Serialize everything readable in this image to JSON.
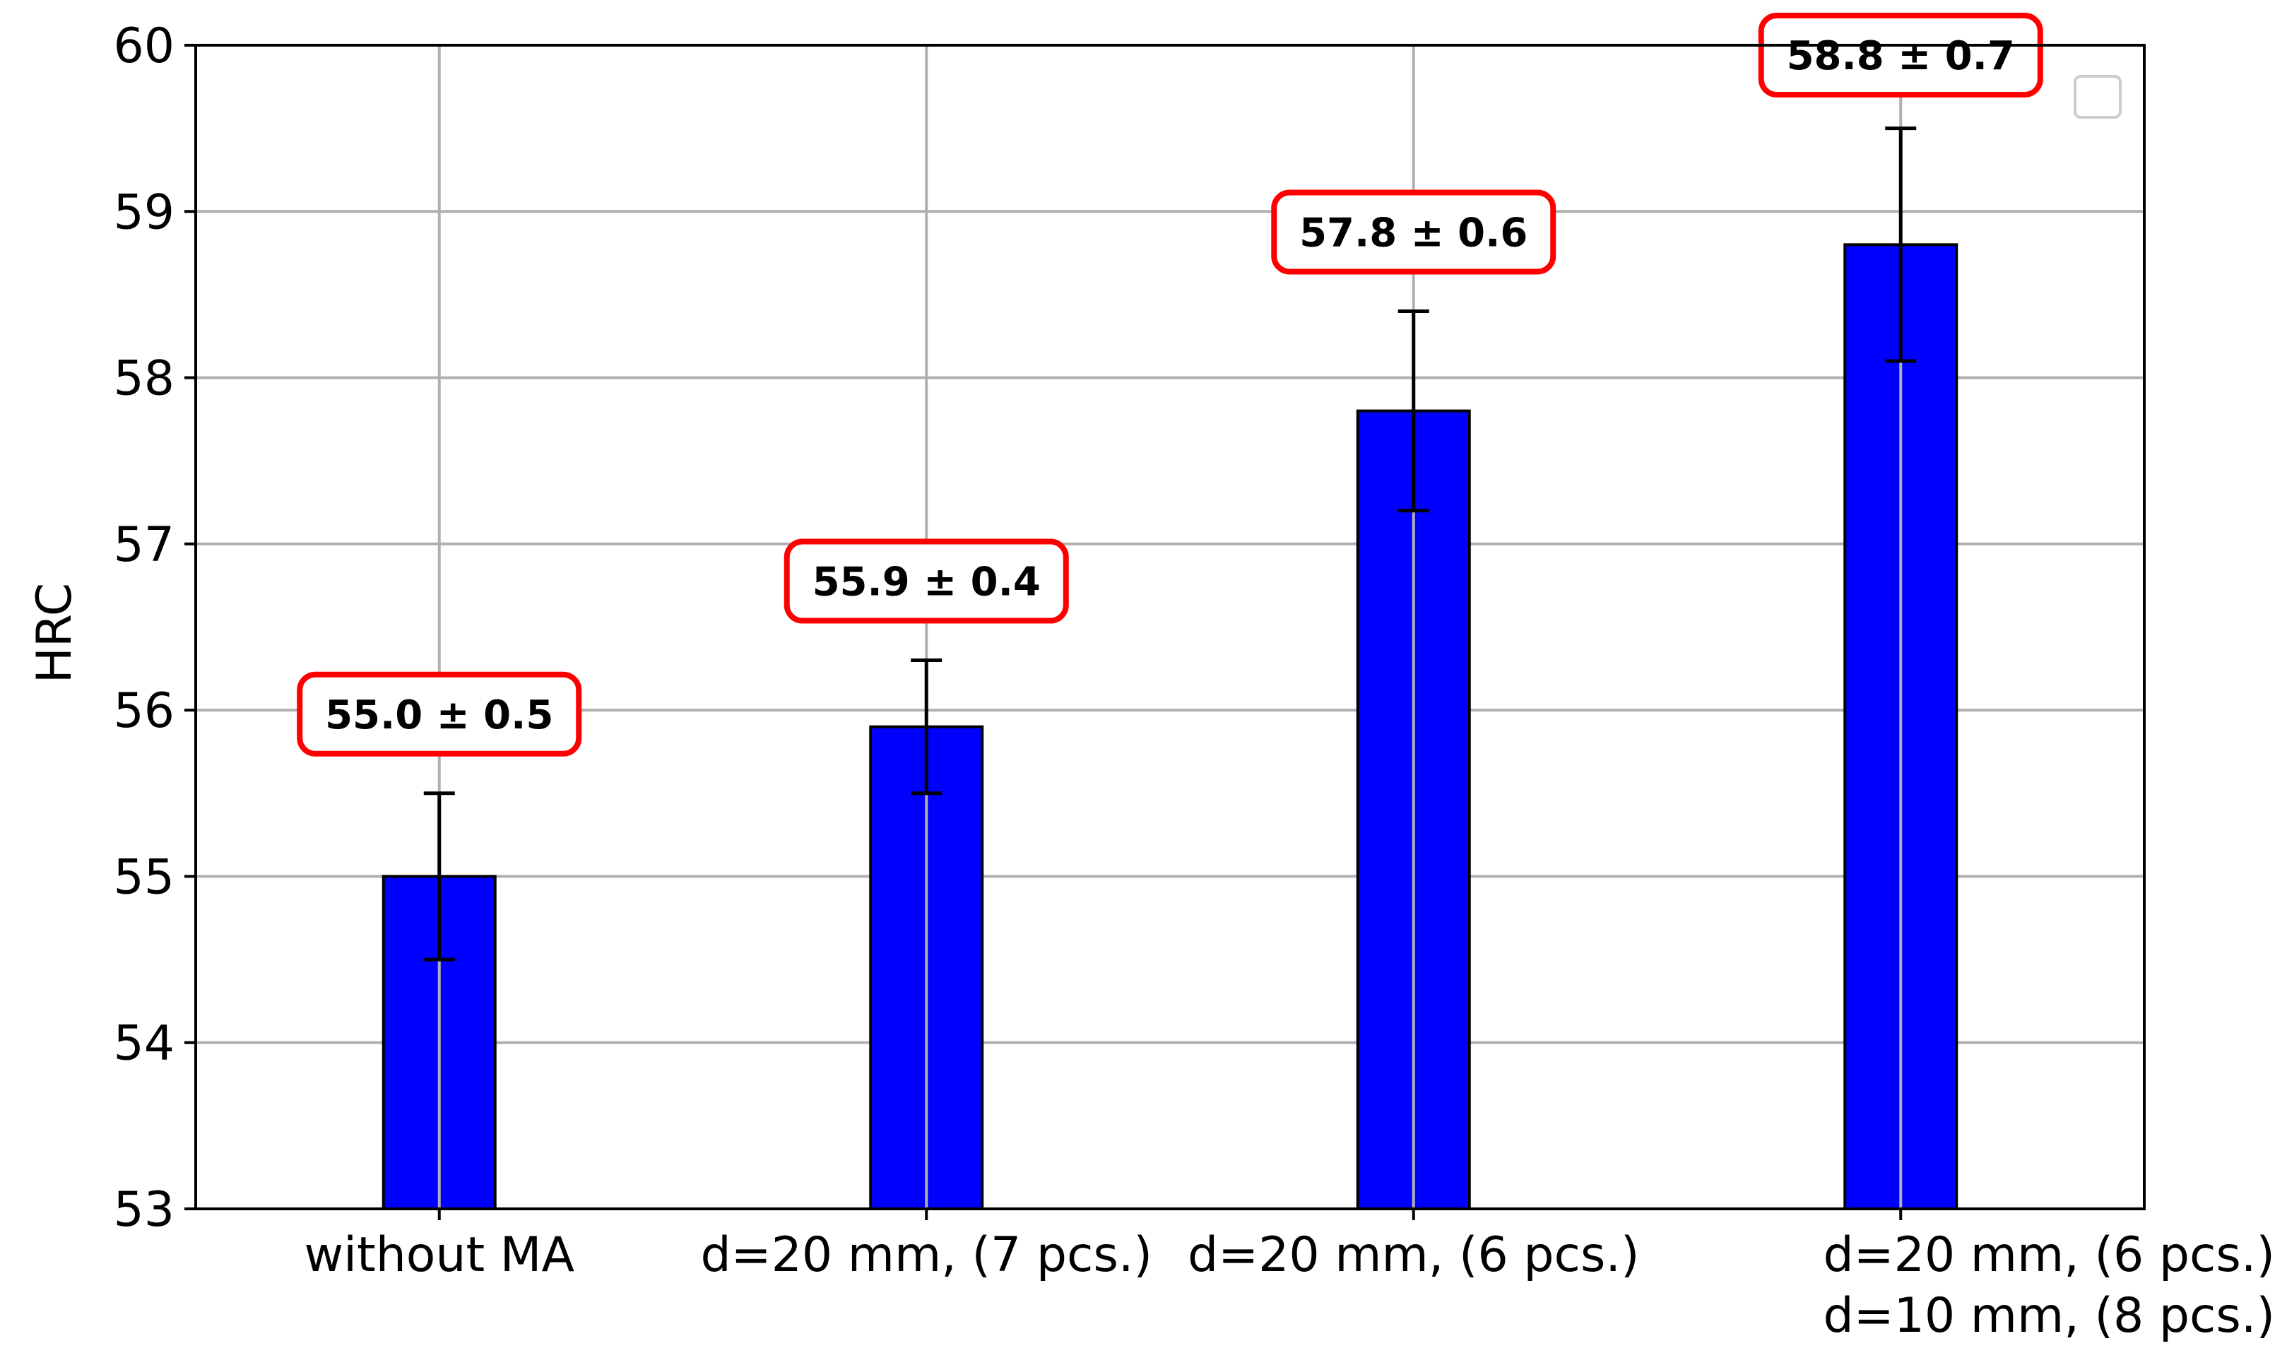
{
  "chart_data": {
    "type": "bar",
    "title": "",
    "xlabel": "",
    "ylabel": "HRC",
    "ylim": [
      53,
      60
    ],
    "yticks": [
      "53",
      "54",
      "55",
      "56",
      "57",
      "58",
      "59",
      "60"
    ],
    "grid": true,
    "legend": "empty box, top-right",
    "categories": [
      [
        "without MA"
      ],
      [
        "d=20 mm, (7 pcs.)"
      ],
      [
        "d=20 mm, (6 pcs.)"
      ],
      [
        "d=20 mm, (6 pcs.)",
        "d=10 mm, (8 pcs.)"
      ]
    ],
    "values": [
      55.0,
      55.9,
      57.8,
      58.8
    ],
    "errors": [
      0.5,
      0.4,
      0.6,
      0.7
    ],
    "labels": [
      "55.0 ± 0.5",
      "55.9 ± 0.4",
      "57.8 ± 0.6",
      "58.8 ± 0.7"
    ],
    "colors": {
      "bar": "#0000ff",
      "label_box": "#ff0000",
      "grid": "#b0b0b0"
    }
  }
}
